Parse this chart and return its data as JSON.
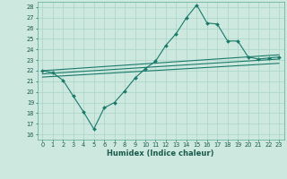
{
  "xlabel": "Humidex (Indice chaleur)",
  "bg_color": "#cce8df",
  "grid_color": "#aad4c8",
  "line_color": "#1a7a6a",
  "xlim": [
    -0.5,
    23.5
  ],
  "ylim": [
    15.5,
    28.5
  ],
  "yticks": [
    16,
    17,
    18,
    19,
    20,
    21,
    22,
    23,
    24,
    25,
    26,
    27,
    28
  ],
  "xticks": [
    0,
    1,
    2,
    3,
    4,
    5,
    6,
    7,
    8,
    9,
    10,
    11,
    12,
    13,
    14,
    15,
    16,
    17,
    18,
    19,
    20,
    21,
    22,
    23
  ],
  "main_x": [
    0,
    1,
    2,
    3,
    4,
    5,
    6,
    7,
    8,
    9,
    10,
    11,
    12,
    13,
    14,
    15,
    16,
    17,
    18,
    19,
    20,
    21,
    22,
    23
  ],
  "main_y": [
    22,
    21.8,
    21.1,
    19.6,
    18.1,
    16.5,
    18.5,
    19.0,
    20.1,
    21.3,
    22.2,
    22.9,
    24.4,
    25.5,
    27.0,
    28.2,
    26.5,
    26.4,
    24.8,
    24.8,
    23.3,
    23.1,
    23.2,
    23.3
  ],
  "line1_x": [
    0,
    23
  ],
  "line1_y": [
    22.0,
    23.5
  ],
  "line2_x": [
    0,
    23
  ],
  "line2_y": [
    21.7,
    23.1
  ],
  "line3_x": [
    0,
    23
  ],
  "line3_y": [
    21.4,
    22.7
  ]
}
